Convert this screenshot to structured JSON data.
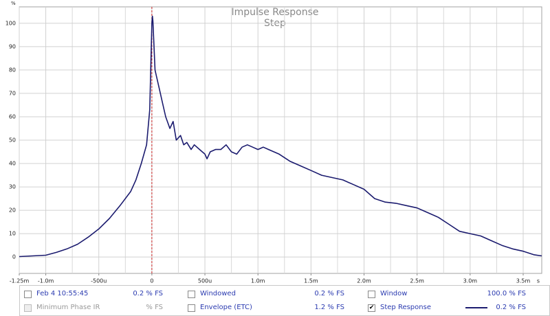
{
  "chart_data": {
    "type": "line",
    "title": "Impulse Response",
    "subtitle": "Step",
    "y_unit": "%",
    "x_unit": "s",
    "x": [
      -0.00125,
      -0.001,
      -0.0009,
      -0.0008,
      -0.0007,
      -0.0006,
      -0.0005,
      -0.0004,
      -0.0003,
      -0.0002,
      -0.00015,
      -0.0001,
      -5e-05,
      -2e-05,
      0,
      5e-06,
      1e-05,
      3e-05,
      5e-05,
      7e-05,
      0.0001,
      0.00013,
      0.00017,
      0.0002,
      0.00023,
      0.00027,
      0.0003,
      0.00033,
      0.00037,
      0.0004,
      0.00045,
      0.0005,
      0.00052,
      0.00055,
      0.0006,
      0.00065,
      0.0007,
      0.00075,
      0.0008,
      0.00085,
      0.0009,
      0.00095,
      0.001,
      0.00105,
      0.0011,
      0.0012,
      0.0013,
      0.0014,
      0.0015,
      0.0016,
      0.0017,
      0.0018,
      0.0019,
      0.002,
      0.0021,
      0.0022,
      0.0023,
      0.0024,
      0.0025,
      0.0026,
      0.0027,
      0.0028,
      0.0029,
      0.003,
      0.0031,
      0.0032,
      0.0033,
      0.0034,
      0.0035,
      0.0036,
      0.003675
    ],
    "series": [
      {
        "name": "Step Response",
        "color": "#1a1a6e",
        "values": [
          0.2,
          0.8,
          2,
          3.5,
          5.5,
          8.5,
          12,
          16.5,
          22,
          28,
          33,
          40,
          48,
          63,
          100,
          103,
          101,
          80,
          76,
          72,
          66,
          60,
          55,
          58,
          50,
          52,
          48,
          49,
          46,
          48,
          46,
          44,
          42,
          45,
          46,
          46,
          48,
          45,
          44,
          47,
          48,
          47,
          46,
          47,
          46,
          44,
          41,
          39,
          37,
          35,
          34,
          33,
          31,
          29,
          25,
          23.5,
          23,
          22,
          21,
          19,
          17,
          14,
          11,
          10,
          9,
          7,
          5,
          3.5,
          2.5,
          1,
          0.5
        ]
      }
    ],
    "xlim": [
      -0.00125,
      0.003675
    ],
    "xticks": [
      {
        "value": -0.00125,
        "label": "-1.25m"
      },
      {
        "value": -0.001,
        "label": "-1.0m"
      },
      {
        "value": -0.0005,
        "label": "-500u"
      },
      0,
      {
        "value": 0.0005,
        "label": "500u"
      },
      {
        "value": 0.001,
        "label": "1.0m"
      },
      {
        "value": 0.0015,
        "label": "1.5m"
      },
      {
        "value": 0.002,
        "label": "2.0m"
      },
      {
        "value": 0.0025,
        "label": "2.5m"
      },
      {
        "value": 0.003,
        "label": "3.0m"
      },
      {
        "value": 0.0035,
        "label": "3.5m"
      }
    ],
    "xgrid_minor": [
      -0.00075,
      -0.00025,
      0.00025,
      0.00075,
      0.00125,
      0.00175,
      0.00225,
      0.00275,
      0.00325
    ],
    "ylim": [
      -7,
      107
    ],
    "yticks": [
      0,
      10,
      20,
      30,
      40,
      50,
      60,
      70,
      80,
      90,
      100
    ],
    "grid": true,
    "marker_x": 0,
    "marker_color": "#cc2222"
  },
  "controls": {
    "rows": [
      [
        {
          "label": "Feb 4 10:55:45",
          "value": "0.2 % FS",
          "checked": false,
          "enabled": true
        },
        {
          "label": "Windowed",
          "value": "0.2 % FS",
          "checked": false,
          "enabled": true
        },
        {
          "label": "Window",
          "value": "100.0 % FS",
          "checked": false,
          "enabled": true
        }
      ],
      [
        {
          "label": "Minimum Phase IR",
          "value": "% FS",
          "checked": false,
          "enabled": false
        },
        {
          "label": "Envelope (ETC)",
          "value": "1.2 % FS",
          "checked": false,
          "enabled": true
        },
        {
          "label": "Step Response",
          "value": "0.2 % FS",
          "checked": true,
          "enabled": true,
          "sample": true
        }
      ]
    ]
  }
}
